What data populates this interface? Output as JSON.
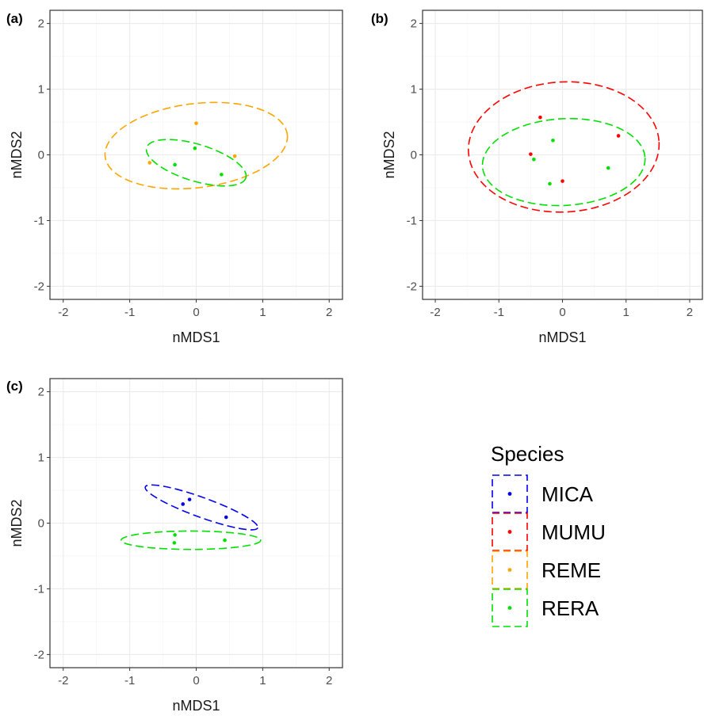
{
  "chart_data": [
    {
      "type": "scatter",
      "panel": "(a)",
      "xlabel": "nMDS1",
      "ylabel": "nMDS2",
      "xlim": [
        -2.2,
        2.2
      ],
      "ylim": [
        -2.2,
        2.2
      ],
      "xticks": [
        -2,
        -1,
        0,
        1,
        2
      ],
      "yticks": [
        -2,
        -1,
        0,
        1,
        2
      ],
      "grid": true,
      "series": [
        {
          "name": "REME",
          "color": "#FFA500",
          "points": [
            [
              0.0,
              0.48
            ],
            [
              -0.7,
              -0.12
            ],
            [
              0.58,
              -0.02
            ]
          ],
          "ellipse": {
            "cx": 0.0,
            "cy": 0.14,
            "rx": 1.38,
            "ry": 0.64,
            "angle": 7
          }
        },
        {
          "name": "RERA",
          "color": "#00E000",
          "points": [
            [
              -0.02,
              0.1
            ],
            [
              -0.32,
              -0.15
            ],
            [
              0.38,
              -0.3
            ]
          ],
          "ellipse": {
            "cx": 0.0,
            "cy": -0.12,
            "rx": 0.78,
            "ry": 0.28,
            "angle": -17
          }
        }
      ]
    },
    {
      "type": "scatter",
      "panel": "(b)",
      "xlabel": "nMDS1",
      "ylabel": "nMDS2",
      "xlim": [
        -2.2,
        2.2
      ],
      "ylim": [
        -2.2,
        2.2
      ],
      "xticks": [
        -2,
        -1,
        0,
        1,
        2
      ],
      "yticks": [
        -2,
        -1,
        0,
        1,
        2
      ],
      "grid": true,
      "series": [
        {
          "name": "MUMU",
          "color": "#FF0000",
          "points": [
            [
              -0.35,
              0.57
            ],
            [
              -0.5,
              0.01
            ],
            [
              0.0,
              -0.4
            ],
            [
              0.88,
              0.29
            ]
          ],
          "ellipse": {
            "cx": 0.02,
            "cy": 0.12,
            "rx": 1.5,
            "ry": 0.99,
            "angle": 3
          }
        },
        {
          "name": "RERA",
          "color": "#00E000",
          "points": [
            [
              -0.15,
              0.22
            ],
            [
              -0.45,
              -0.07
            ],
            [
              -0.2,
              -0.44
            ],
            [
              0.72,
              -0.2
            ]
          ],
          "ellipse": {
            "cx": 0.02,
            "cy": -0.11,
            "rx": 1.28,
            "ry": 0.66,
            "angle": 3
          }
        }
      ]
    },
    {
      "type": "scatter",
      "panel": "(c)",
      "xlabel": "nMDS1",
      "ylabel": "nMDS2",
      "xlim": [
        -2.2,
        2.2
      ],
      "ylim": [
        -2.2,
        2.2
      ],
      "xticks": [
        -2,
        -1,
        0,
        1,
        2
      ],
      "yticks": [
        -2,
        -1,
        0,
        1,
        2
      ],
      "grid": true,
      "series": [
        {
          "name": "MICA",
          "color": "#0000EE",
          "points": [
            [
              -0.1,
              0.36
            ],
            [
              -0.2,
              0.29
            ],
            [
              0.45,
              0.09
            ]
          ],
          "ellipse": {
            "cx": 0.08,
            "cy": 0.24,
            "rx": 0.9,
            "ry": 0.15,
            "angle": -20
          }
        },
        {
          "name": "RERA",
          "color": "#00E000",
          "points": [
            [
              -0.32,
              -0.18
            ],
            [
              -0.33,
              -0.3
            ],
            [
              0.43,
              -0.26
            ]
          ],
          "ellipse": {
            "cx": -0.08,
            "cy": -0.26,
            "rx": 1.05,
            "ry": 0.14,
            "angle": 0
          }
        }
      ]
    }
  ],
  "legend": {
    "title": "Species",
    "items": [
      {
        "label": "MICA",
        "color": "#0000EE"
      },
      {
        "label": "MUMU",
        "color": "#FF0000"
      },
      {
        "label": "REME",
        "color": "#FFA500"
      },
      {
        "label": "RERA",
        "color": "#00E000"
      }
    ]
  }
}
